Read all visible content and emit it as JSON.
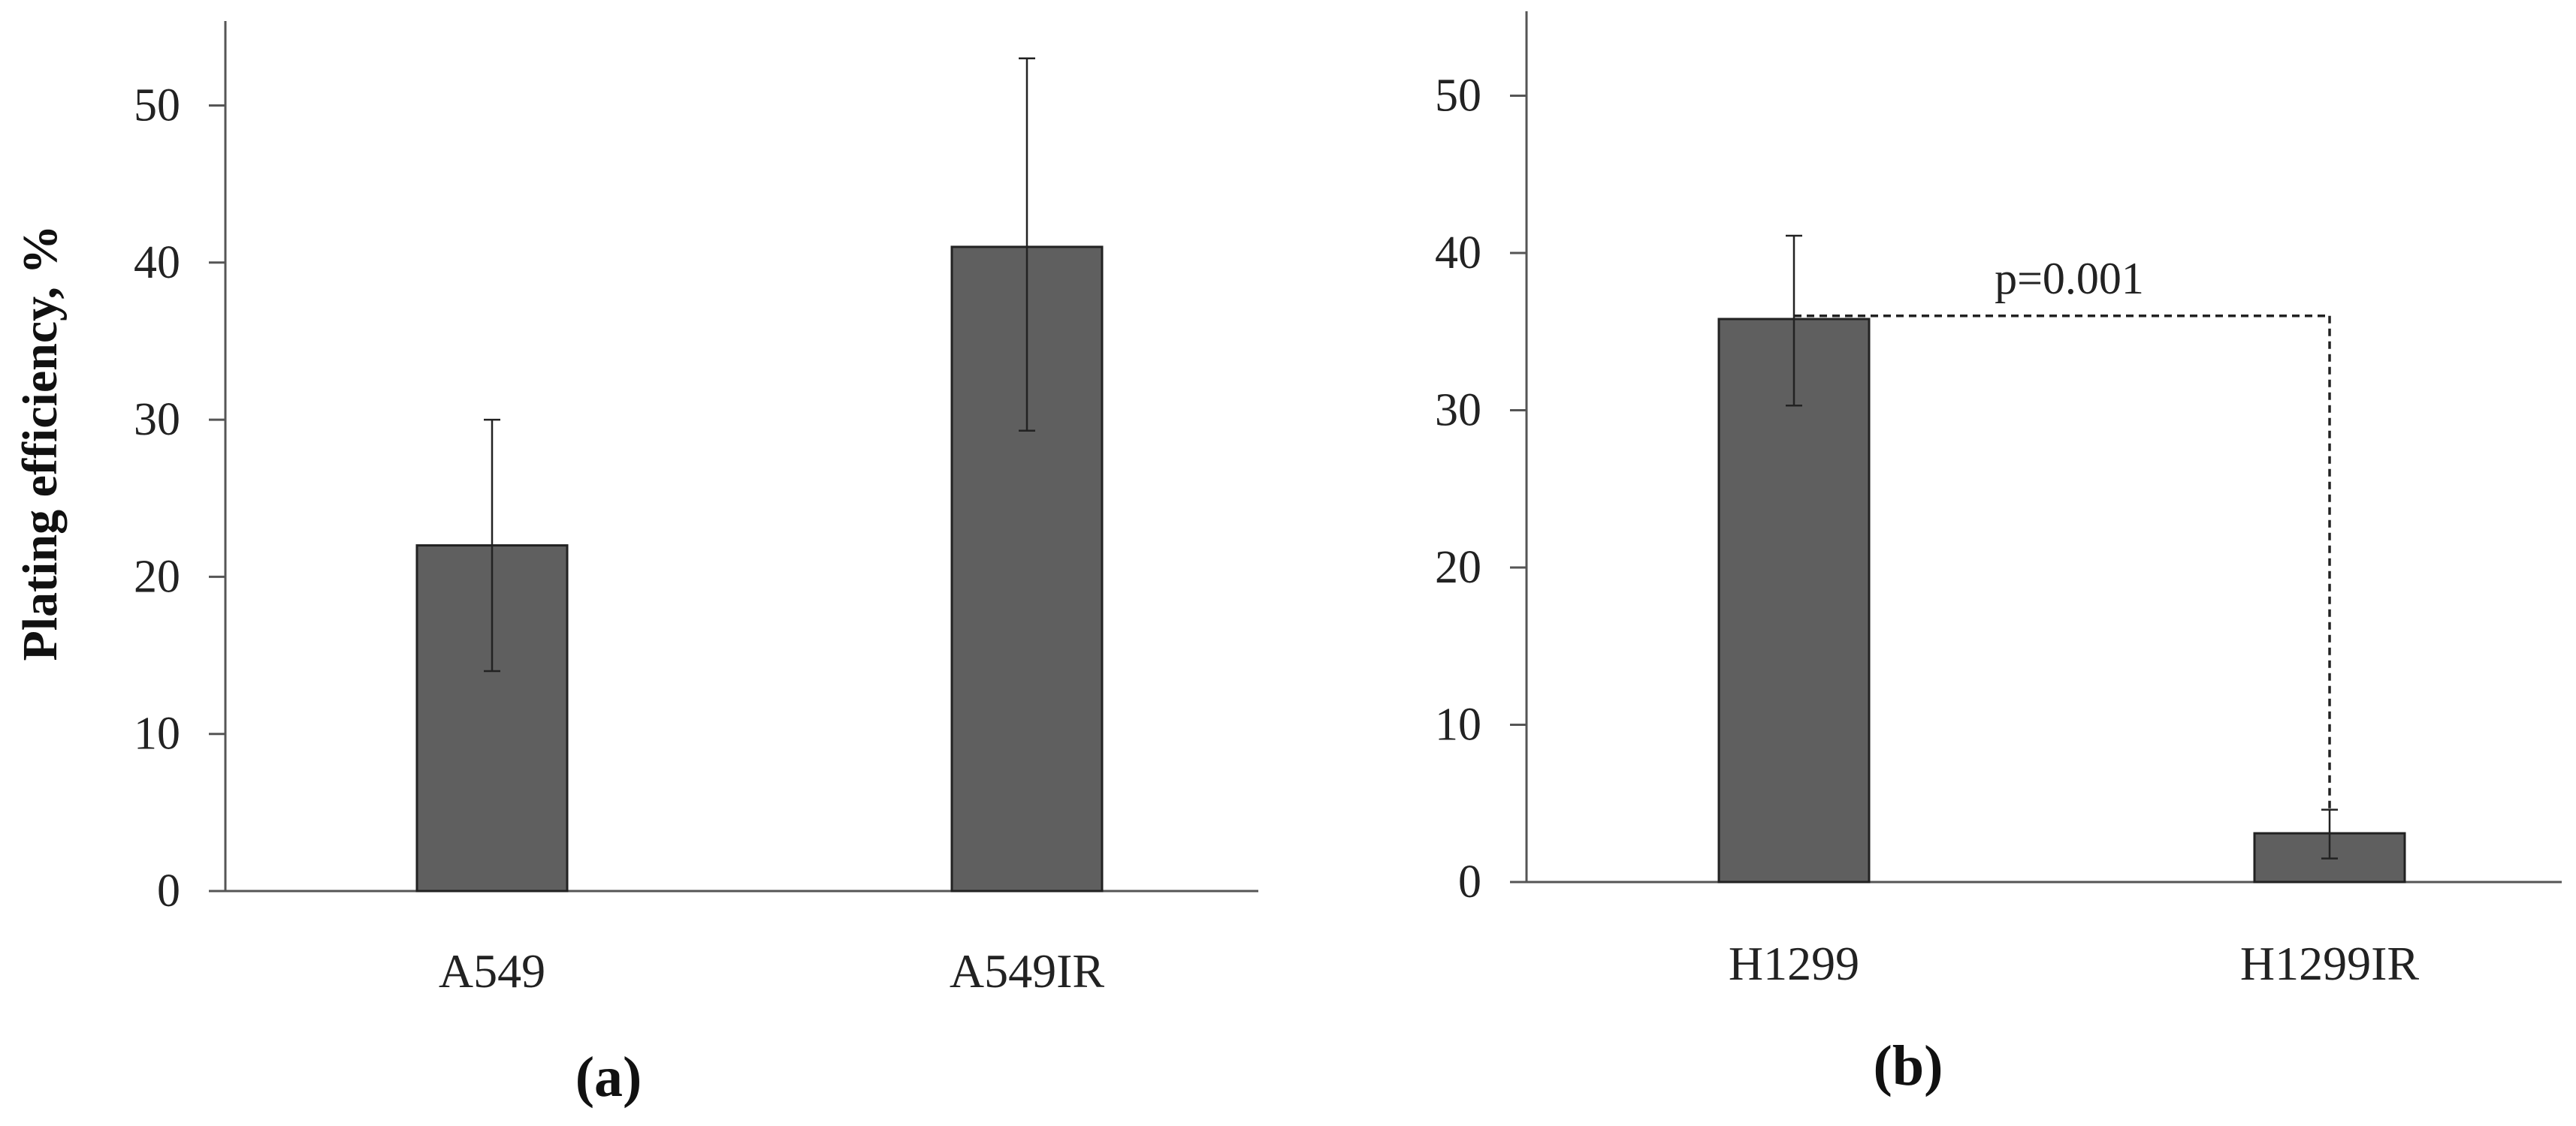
{
  "chart_data": [
    {
      "type": "bar",
      "panel_label": "(a)",
      "categories": [
        "A549",
        "A549IR"
      ],
      "values": [
        22,
        41
      ],
      "error_low": [
        14,
        29.3
      ],
      "error_high": [
        30,
        53
      ],
      "ylabel": "Plating efficiency, %",
      "ylim": [
        0,
        55
      ],
      "yticks": [
        0,
        10,
        20,
        30,
        40,
        50
      ],
      "grid": false,
      "legend": "none",
      "bar_color": "#5f5f5f"
    },
    {
      "type": "bar",
      "panel_label": "(b)",
      "categories": [
        "H1299",
        "H1299IR"
      ],
      "values": [
        35.8,
        3.1
      ],
      "error_low": [
        30.3,
        1.5
      ],
      "error_high": [
        41.1,
        4.6
      ],
      "ylabel": "",
      "ylim": [
        0,
        55
      ],
      "yticks": [
        0,
        10,
        20,
        30,
        40,
        50
      ],
      "grid": false,
      "legend": "none",
      "bar_color": "#5f5f5f",
      "annotation": {
        "text": "p=0.001",
        "bracket_y": 36,
        "from": "H1299",
        "to": "H1299IR"
      }
    }
  ]
}
